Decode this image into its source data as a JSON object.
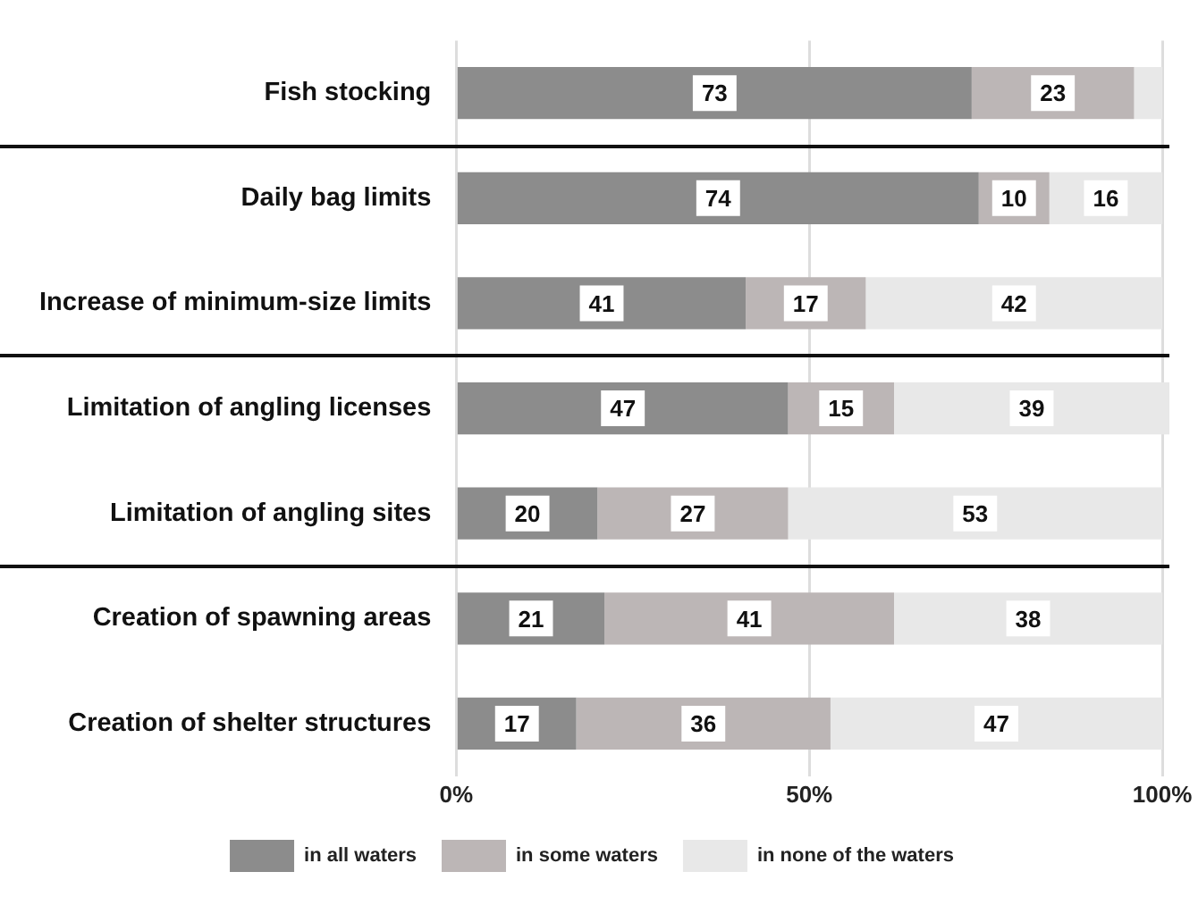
{
  "chart_data": {
    "type": "bar",
    "orientation": "horizontal",
    "stacked": true,
    "categories": [
      "Fish stocking",
      "Daily bag limits",
      "Increase of minimum-size limits",
      "Limitation of angling licenses",
      "Limitation of angling sites",
      "Creation of spawning areas",
      "Creation of shelter structures"
    ],
    "series": [
      {
        "name": "in all waters",
        "color": "#8c8c8c",
        "values": [
          73,
          74,
          41,
          47,
          20,
          21,
          17
        ],
        "value_labels": [
          "73",
          "74",
          "41",
          "47",
          "20",
          "21",
          "17"
        ]
      },
      {
        "name": "in some waters",
        "color": "#bcb6b6",
        "values": [
          23,
          10,
          17,
          15,
          27,
          41,
          36
        ],
        "value_labels": [
          "23",
          "10",
          "17",
          "15",
          "27",
          "41",
          "36"
        ]
      },
      {
        "name": "in none of the waters",
        "color": "#e8e8e8",
        "values": [
          4,
          16,
          42,
          39,
          53,
          38,
          47
        ],
        "value_labels": [
          null,
          "16",
          "42",
          "39",
          "53",
          "38",
          "47"
        ]
      }
    ],
    "xlim": [
      0,
      101
    ],
    "xticks": [
      {
        "value": 0,
        "label": "0%"
      },
      {
        "value": 50,
        "label": "50%"
      },
      {
        "value": 100,
        "label": "100%"
      }
    ],
    "grid": "x",
    "legend": "bottom"
  }
}
